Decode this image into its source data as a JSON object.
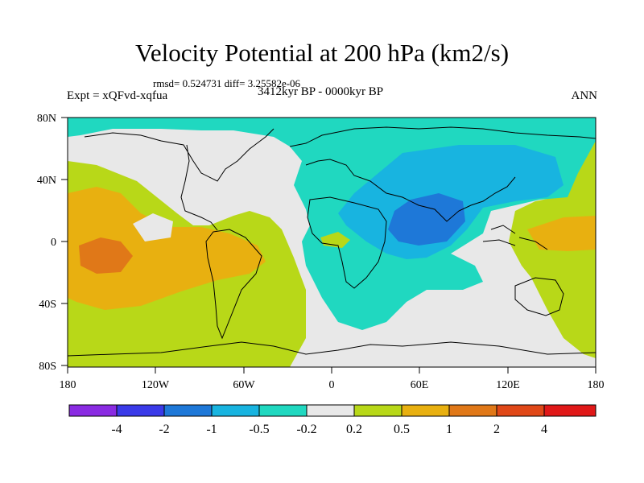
{
  "title": "Velocity Potential at 200 hPa (km2/s)",
  "stats": "rmsd= 0.524731 diff= 3.25582e-06",
  "period": "3412kyr BP - 0000kyr BP",
  "experiment": "Expt = xQFvd-xqfua",
  "season": "ANN",
  "y_axis_labels": [
    "80N",
    "40N",
    "0",
    "40S",
    "80S"
  ],
  "x_axis_labels": [
    "180",
    "120W",
    "60W",
    "0",
    "60E",
    "120E",
    "180"
  ],
  "colorbar": {
    "labels": [
      "-4",
      "-2",
      "-1",
      "-0.5",
      "-0.2",
      "0.2",
      "0.5",
      "1",
      "2",
      "4"
    ],
    "colors": [
      "#8a2be2",
      "#3a3ae8",
      "#1e78d8",
      "#18b4e0",
      "#20d8c0",
      "#e8e8e8",
      "#b8d818",
      "#e8b010",
      "#e07818",
      "#e04818",
      "#e01818"
    ]
  }
}
